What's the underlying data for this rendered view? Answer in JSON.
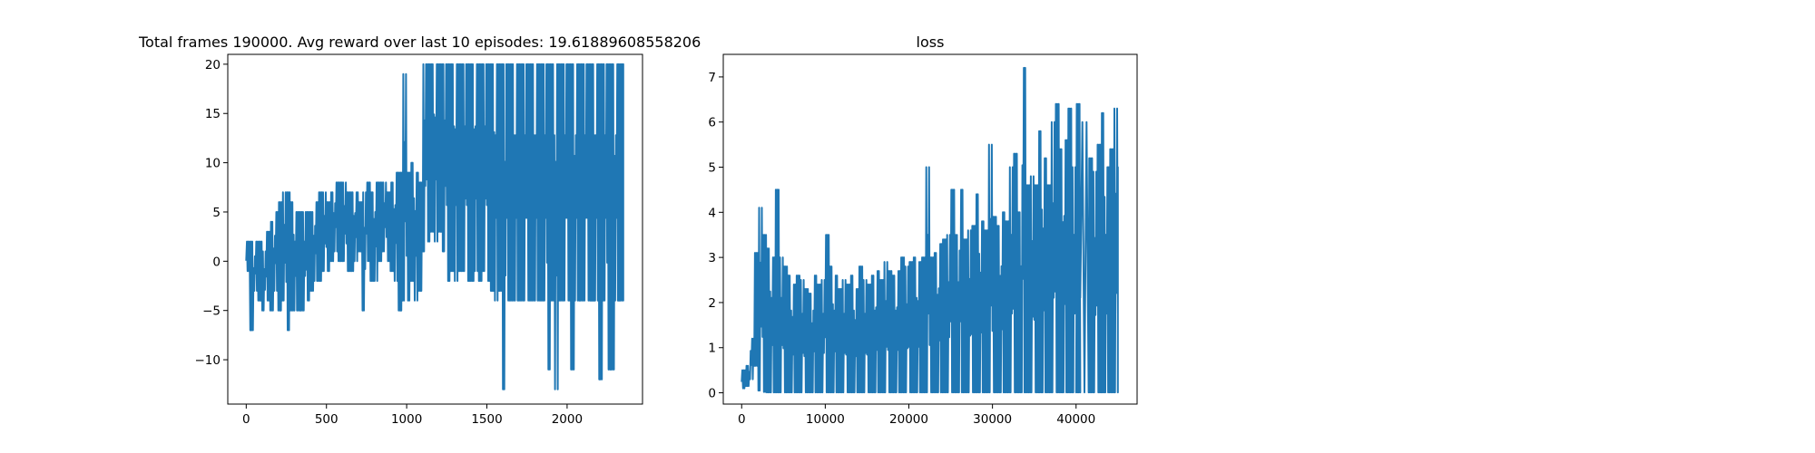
{
  "figure_background": "#ffffff",
  "chart_data": [
    {
      "type": "line",
      "title": "Total frames 190000. Avg reward over last 10 episodes: 19.61889608558206",
      "xlabel": "",
      "ylabel": "",
      "grid": false,
      "xlim": [
        -115,
        2470
      ],
      "ylim": [
        -14.5,
        21
      ],
      "xticks": [
        0,
        500,
        1000,
        1500,
        2000
      ],
      "yticks": [
        -10,
        -5,
        0,
        5,
        10,
        15,
        20
      ],
      "color": "#1f77b4",
      "series": [
        {
          "x": [
            0,
            25,
            50,
            75,
            100,
            125,
            150,
            175,
            200,
            225,
            250,
            275,
            300,
            325,
            350,
            375,
            400,
            425,
            450,
            475,
            500,
            525,
            550,
            575,
            600,
            625,
            650,
            675,
            700,
            725,
            750,
            775,
            800,
            825,
            850,
            875,
            900,
            925,
            950,
            975,
            1000,
            1025,
            1050,
            1075,
            1100,
            1125,
            1150,
            1175,
            1200,
            1225,
            1250,
            1275,
            1300,
            1325,
            1350,
            1375,
            1400,
            1425,
            1450,
            1475,
            1500,
            1525,
            1550,
            1575,
            1600,
            1625,
            1650,
            1675,
            1700,
            1725,
            1750,
            1775,
            1800,
            1825,
            1850,
            1875,
            1900,
            1925,
            1950,
            1975,
            2000,
            2025,
            2050,
            2075,
            2100,
            2125,
            2150,
            2175,
            2200,
            2225,
            2250,
            2275,
            2300,
            2325,
            2350
          ],
          "min": [
            -1,
            -7,
            -3,
            -4,
            -5,
            -4,
            -5,
            -3,
            -5,
            -4,
            -7,
            -5,
            -5,
            -5,
            -5,
            -4,
            -3,
            -2,
            -2,
            -1,
            -1,
            0,
            1,
            0,
            0,
            -1,
            -1,
            0,
            1,
            -5,
            0,
            -2,
            -2,
            0,
            1,
            0,
            -1,
            -2,
            -5,
            -4,
            -4,
            -2,
            -4,
            -3,
            1,
            2,
            3,
            2,
            3,
            1,
            -2,
            -1,
            -2,
            -1,
            -1,
            -2,
            -2,
            -1,
            -2,
            -1,
            -2,
            -3,
            -4,
            -3,
            -13,
            -4,
            -4,
            -4,
            -4,
            -4,
            -4,
            -4,
            -4,
            -4,
            -4,
            -11,
            -4,
            -13,
            -4,
            -4,
            -4,
            -11,
            -4,
            -4,
            -4,
            -4,
            -4,
            -4,
            -12,
            -4,
            -11,
            -11,
            -4,
            -4,
            -4
          ],
          "max": [
            2,
            2,
            2,
            2,
            1,
            3,
            4,
            5,
            6,
            7,
            7,
            6,
            5,
            5,
            5,
            5,
            5,
            6,
            7,
            7,
            6,
            7,
            8,
            8,
            8,
            7,
            7,
            7,
            6,
            7,
            8,
            7,
            8,
            8,
            8,
            7,
            8,
            9,
            9,
            19,
            9,
            10,
            9,
            8,
            20,
            20,
            20,
            20,
            20,
            20,
            20,
            20,
            20,
            20,
            20,
            20,
            20,
            20,
            20,
            20,
            20,
            20,
            20,
            20,
            20,
            20,
            20,
            20,
            20,
            20,
            20,
            20,
            20,
            20,
            20,
            20,
            20,
            20,
            20,
            20,
            20,
            20,
            20,
            20,
            20,
            20,
            20,
            20,
            20,
            20,
            20,
            20,
            20,
            20,
            20
          ]
        }
      ]
    },
    {
      "type": "line",
      "title": "loss",
      "xlabel": "",
      "ylabel": "",
      "grid": false,
      "xlim": [
        -2200,
        47300
      ],
      "ylim": [
        -0.25,
        7.5
      ],
      "xticks": [
        0,
        10000,
        20000,
        30000,
        40000
      ],
      "yticks": [
        0,
        1,
        2,
        3,
        4,
        5,
        6,
        7
      ],
      "color": "#1f77b4",
      "series": [
        {
          "x": [
            0,
            500,
            1000,
            1500,
            2000,
            2500,
            3000,
            3500,
            4000,
            4500,
            5000,
            5500,
            6000,
            6500,
            7000,
            7500,
            8000,
            8500,
            9000,
            9500,
            10000,
            10500,
            11000,
            11500,
            12000,
            12500,
            13000,
            13500,
            14000,
            14500,
            15000,
            15500,
            16000,
            16500,
            17000,
            17500,
            18000,
            18500,
            19000,
            19500,
            20000,
            20500,
            21000,
            21500,
            22000,
            22500,
            23000,
            23500,
            24000,
            24500,
            25000,
            25500,
            26000,
            26500,
            27000,
            27500,
            28000,
            28500,
            29000,
            29500,
            30000,
            30500,
            31000,
            31500,
            32000,
            32500,
            33000,
            33500,
            34000,
            34500,
            35000,
            35500,
            36000,
            36500,
            37000,
            37500,
            38000,
            38500,
            39000,
            39500,
            40000,
            40500,
            40000,
            41500,
            42000,
            42500,
            43000,
            43500,
            44000,
            44500,
            45000
          ],
          "min": [
            0.1,
            0.15,
            0.3,
            0.6,
            0.05,
            0.02,
            0.01,
            0.01,
            0.01,
            0.01,
            0.01,
            0.01,
            0.01,
            0.01,
            0.01,
            0.01,
            0.01,
            0.01,
            0.01,
            0.01,
            0.01,
            0.01,
            0.01,
            0.01,
            0.01,
            0.01,
            0.01,
            0.01,
            0.01,
            0.01,
            0.01,
            0.01,
            0.01,
            0.01,
            0.01,
            0.01,
            0.01,
            0.01,
            0.01,
            0.01,
            0.01,
            0.01,
            0.01,
            0.01,
            0.01,
            0.01,
            0.01,
            0.01,
            0.01,
            0.01,
            0.01,
            0.01,
            0.01,
            0.01,
            0.01,
            0.01,
            0.01,
            0.01,
            0.01,
            0.01,
            0.01,
            0.01,
            0.01,
            0.01,
            0.01,
            0.01,
            0.01,
            0.01,
            0.01,
            0.01,
            0.01,
            0.01,
            0.01,
            0.01,
            0.01,
            0.01,
            0.01,
            0.01,
            0.01,
            0.01,
            0.01,
            0.01,
            0.01,
            0.01,
            0.01,
            0.01,
            0.01,
            0.01,
            0.01,
            0.01,
            0.01
          ],
          "max": [
            0.5,
            0.6,
            1.2,
            3.1,
            4.1,
            3.5,
            3.2,
            3.0,
            4.5,
            3.0,
            2.8,
            2.6,
            2.4,
            2.6,
            2.5,
            2.3,
            2.2,
            2.6,
            2.4,
            2.5,
            3.5,
            2.8,
            2.6,
            2.3,
            2.5,
            2.4,
            2.6,
            2.3,
            2.8,
            2.5,
            2.4,
            2.6,
            2.7,
            2.5,
            2.9,
            2.7,
            2.6,
            2.7,
            3.0,
            2.8,
            2.9,
            3.0,
            2.9,
            3.0,
            5.0,
            3.0,
            3.1,
            3.3,
            3.4,
            3.5,
            4.5,
            3.5,
            4.5,
            3.4,
            3.6,
            3.7,
            4.4,
            3.8,
            3.6,
            5.5,
            3.9,
            3.7,
            4.0,
            3.8,
            5.0,
            5.3,
            4.0,
            7.2,
            4.6,
            4.8,
            4.6,
            5.8,
            5.2,
            4.6,
            6.0,
            6.4,
            5.4,
            5.6,
            6.3,
            5.0,
            6.4,
            5.4,
            6.0,
            5.2,
            4.9,
            5.5,
            6.2,
            5.0,
            5.4,
            6.3,
            5.0
          ]
        }
      ]
    }
  ]
}
